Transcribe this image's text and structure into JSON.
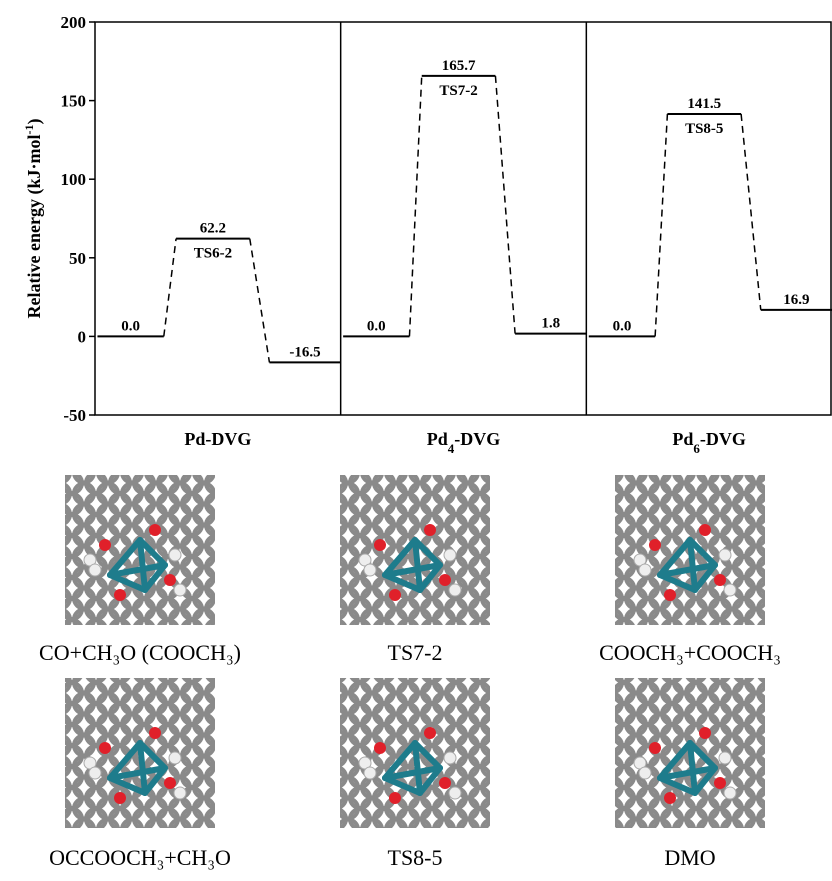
{
  "chart_data": {
    "type": "energy-profile",
    "y_label": [
      "Relative energy (kJ·mol",
      "-1",
      ")"
    ],
    "ylim": [
      -50,
      200
    ],
    "yticks": [
      -50,
      0,
      50,
      100,
      150,
      200
    ],
    "panels": [
      {
        "label": [
          "Pd-DVG"
        ],
        "values": [
          0,
          62.2,
          -16.5
        ],
        "value_labels": [
          "0.0",
          "62.2",
          "-16.5"
        ],
        "names": [
          null,
          "TS6-2",
          null
        ]
      },
      {
        "label": [
          "Pd",
          "4",
          "-DVG"
        ],
        "values": [
          0,
          165.7,
          1.8
        ],
        "value_labels": [
          "0.0",
          "165.7",
          "1.8"
        ],
        "names": [
          null,
          "TS7-2",
          null
        ]
      },
      {
        "label": [
          "Pd",
          "6",
          "-DVG"
        ],
        "values": [
          0,
          141.5,
          16.9
        ],
        "value_labels": [
          "0.0",
          "141.5",
          "16.9"
        ],
        "names": [
          null,
          "TS8-5",
          null
        ]
      }
    ]
  },
  "structures": [
    {
      "caption": "CO+CH₃O (COOCH₃)"
    },
    {
      "caption": "TS7-2"
    },
    {
      "caption": "COOCH₃+COOCH₃"
    },
    {
      "caption": "OCCOOCH₃+CH₃O"
    },
    {
      "caption": "TS8-5"
    },
    {
      "caption": "DMO"
    }
  ]
}
